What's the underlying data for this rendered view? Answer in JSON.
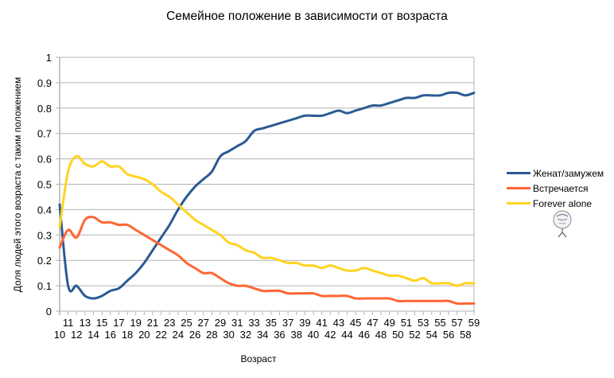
{
  "chart_data": {
    "type": "line",
    "title": "Семейное положение в зависимости от возраста",
    "xlabel": "Возраст",
    "ylabel": "Доля людей этого возраста с таким положением",
    "ylim": [
      0,
      1
    ],
    "yticks": [
      "0",
      "0.1",
      "0.2",
      "0.3",
      "0.4",
      "0.5",
      "0.6",
      "0.7",
      "0.8",
      "0.9",
      "1"
    ],
    "grid": true,
    "legend_position": "right",
    "x": [
      10,
      11,
      12,
      13,
      14,
      15,
      16,
      17,
      18,
      19,
      20,
      21,
      22,
      23,
      24,
      25,
      26,
      27,
      28,
      29,
      30,
      31,
      32,
      33,
      34,
      35,
      36,
      37,
      38,
      39,
      40,
      41,
      42,
      43,
      44,
      45,
      46,
      47,
      48,
      49,
      50,
      51,
      52,
      53,
      54,
      55,
      56,
      57,
      58,
      59
    ],
    "series": [
      {
        "name": "Женат/замужем",
        "color": "#2a5b94",
        "values": [
          0.42,
          0.1,
          0.1,
          0.06,
          0.05,
          0.06,
          0.08,
          0.09,
          0.12,
          0.15,
          0.19,
          0.24,
          0.29,
          0.34,
          0.4,
          0.45,
          0.49,
          0.52,
          0.55,
          0.61,
          0.63,
          0.65,
          0.67,
          0.71,
          0.72,
          0.73,
          0.74,
          0.75,
          0.76,
          0.77,
          0.77,
          0.77,
          0.78,
          0.79,
          0.78,
          0.79,
          0.8,
          0.81,
          0.81,
          0.82,
          0.83,
          0.84,
          0.84,
          0.85,
          0.85,
          0.85,
          0.86,
          0.86,
          0.85,
          0.86
        ]
      },
      {
        "name": "Встречается",
        "color": "#ff6633",
        "values": [
          0.25,
          0.32,
          0.29,
          0.36,
          0.37,
          0.35,
          0.35,
          0.34,
          0.34,
          0.32,
          0.3,
          0.28,
          0.26,
          0.24,
          0.22,
          0.19,
          0.17,
          0.15,
          0.15,
          0.13,
          0.11,
          0.1,
          0.1,
          0.09,
          0.08,
          0.08,
          0.08,
          0.07,
          0.07,
          0.07,
          0.07,
          0.06,
          0.06,
          0.06,
          0.06,
          0.05,
          0.05,
          0.05,
          0.05,
          0.05,
          0.04,
          0.04,
          0.04,
          0.04,
          0.04,
          0.04,
          0.04,
          0.03,
          0.03,
          0.03
        ]
      },
      {
        "name": "Forever alone",
        "color": "#ffd320",
        "values": [
          0.33,
          0.55,
          0.61,
          0.58,
          0.57,
          0.59,
          0.57,
          0.57,
          0.54,
          0.53,
          0.52,
          0.5,
          0.47,
          0.45,
          0.42,
          0.39,
          0.36,
          0.34,
          0.32,
          0.3,
          0.27,
          0.26,
          0.24,
          0.23,
          0.21,
          0.21,
          0.2,
          0.19,
          0.19,
          0.18,
          0.18,
          0.17,
          0.18,
          0.17,
          0.16,
          0.16,
          0.17,
          0.16,
          0.15,
          0.14,
          0.14,
          0.13,
          0.12,
          0.13,
          0.11,
          0.11,
          0.11,
          0.1,
          0.11,
          0.11
        ]
      }
    ]
  },
  "legend": {
    "items": [
      {
        "label": "Женат/замужем",
        "color": "#2a5b94"
      },
      {
        "label": "Встречается",
        "color": "#ff6633"
      },
      {
        "label": "Forever alone",
        "color": "#ffd320"
      }
    ],
    "icon": "forever-alone-face-icon"
  }
}
